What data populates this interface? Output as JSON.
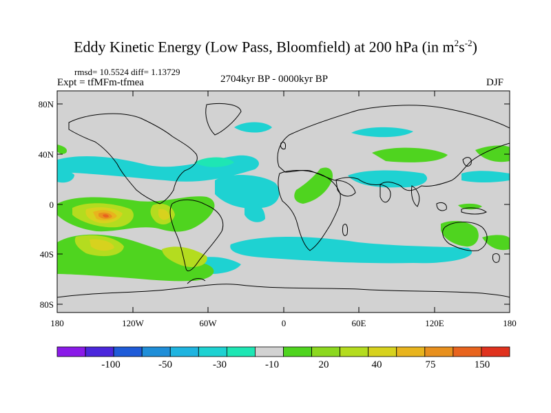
{
  "title": {
    "main": "Eddy Kinetic Energy (Low Pass, Bloomfield) at 200 hPa (in m",
    "sup1": "2",
    "mid": "s",
    "sup2": "-2",
    "end": ")"
  },
  "stats": "rmsd= 10.5524 diff= 1.13729",
  "experiment": "Expt = tfMFm-tfmea",
  "period": "2704kyr BP - 0000kyr BP",
  "season": "DJF",
  "map": {
    "lat_ticks": [
      "80N",
      "40N",
      "0",
      "40S",
      "80S"
    ],
    "lon_ticks": [
      "180",
      "120W",
      "60W",
      "0",
      "60E",
      "120E",
      "180"
    ],
    "background_color": "#d2d2d2"
  },
  "colorbar": {
    "colors": [
      "#8a1ae8",
      "#4b27dc",
      "#1f5bd8",
      "#1f8ed8",
      "#1fb4e0",
      "#1ed2d2",
      "#1ee6b4",
      "#d2d2d2",
      "#4fd41f",
      "#8cd81f",
      "#b4dc1f",
      "#d7d21e",
      "#e8b41e",
      "#e8901e",
      "#e8641e",
      "#e0321e"
    ],
    "labels": [
      "-100",
      "-50",
      "-30",
      "-10",
      "20",
      "40",
      "75",
      "150"
    ]
  }
}
